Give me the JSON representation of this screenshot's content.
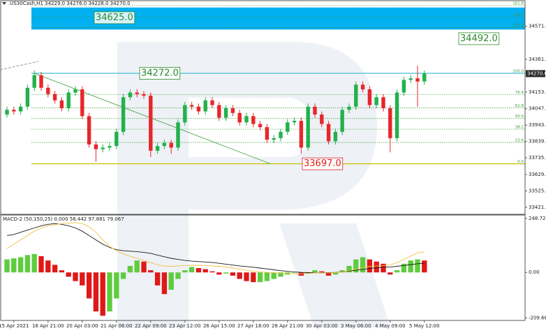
{
  "chart_data": [
    {
      "type": "candlestick",
      "title": ".US30Cash,H1  34229.0 34276.0 34228.0 34270.0",
      "categories": [
        null,
        "15 Apr 2021",
        null,
        null,
        null,
        null,
        "16 Apr 21:00",
        null,
        null,
        null,
        null,
        "20 Apr 03:00",
        null,
        null,
        null,
        null,
        "21 Apr 06:00",
        null,
        null,
        null,
        null,
        "22 Apr 09:00",
        null,
        null,
        null,
        null,
        "23 Apr 12:00",
        null,
        null,
        null,
        null,
        "26 Apr 15:00",
        null,
        null,
        null,
        null,
        "27 Apr 18:00",
        null,
        null,
        null,
        null,
        "28 Apr 21:00",
        null,
        null,
        null,
        null,
        "30 Apr 03:00",
        null,
        null,
        null,
        null,
        "3 May 06:00",
        null,
        null,
        null,
        null,
        "4 May 09:00",
        null,
        null,
        null,
        null,
        "5 May 12:00"
      ],
      "open": [
        34010,
        34040,
        34030,
        34060,
        34180,
        34260,
        34180,
        34140,
        34100,
        34050,
        34150,
        34170,
        34000,
        33820,
        33790,
        33800,
        33810,
        33900,
        34120,
        34150,
        34140,
        34130,
        33780,
        33810,
        33830,
        33800,
        33960,
        34070,
        34060,
        34030,
        34100,
        34070,
        33990,
        34050,
        34020,
        33960,
        34000,
        33950,
        33930,
        33850,
        33860,
        33900,
        33960,
        33970,
        33800,
        34060,
        34010,
        33950,
        33840,
        33900,
        34040,
        34060,
        34200,
        34170,
        34070,
        34120,
        34050,
        33860,
        34150,
        34230,
        34240,
        34220
      ],
      "high": [
        34060,
        34060,
        34080,
        34200,
        34290,
        34280,
        34200,
        34160,
        34120,
        34170,
        34190,
        34190,
        34020,
        33840,
        33820,
        33830,
        33920,
        34140,
        34170,
        34170,
        34160,
        34150,
        33830,
        33850,
        33850,
        33980,
        34090,
        34090,
        34080,
        34120,
        34120,
        34090,
        34070,
        34070,
        34040,
        34020,
        34020,
        33970,
        33950,
        33880,
        33920,
        33980,
        33990,
        33990,
        34080,
        34080,
        34030,
        33970,
        33920,
        34060,
        34080,
        34220,
        34220,
        34190,
        34140,
        34140,
        34070,
        34170,
        34250,
        34260,
        34320,
        34290
      ],
      "low": [
        33990,
        34010,
        34010,
        34040,
        34160,
        34160,
        34120,
        34080,
        34030,
        34030,
        34130,
        33980,
        33800,
        33710,
        33770,
        33780,
        33790,
        33880,
        34100,
        34120,
        34110,
        33740,
        33760,
        33790,
        33760,
        33780,
        33940,
        34040,
        34010,
        34010,
        34050,
        33970,
        33970,
        34000,
        33940,
        33940,
        33930,
        33910,
        33830,
        33830,
        33840,
        33880,
        33940,
        33760,
        33780,
        33990,
        33930,
        33820,
        33820,
        33880,
        34020,
        34040,
        34150,
        34050,
        34050,
        34030,
        33770,
        33840,
        34130,
        34210,
        34060,
        34200
      ],
      "close": [
        34040,
        34030,
        34060,
        34180,
        34260,
        34180,
        34140,
        34100,
        34050,
        34150,
        34170,
        34000,
        33820,
        33790,
        33800,
        33810,
        33900,
        34120,
        34150,
        34140,
        34130,
        33780,
        33810,
        33830,
        33800,
        33960,
        34070,
        34060,
        34030,
        34100,
        34070,
        33990,
        34050,
        34020,
        33960,
        34000,
        33950,
        33930,
        33850,
        33860,
        33900,
        33960,
        33970,
        33800,
        34060,
        34010,
        33950,
        33840,
        33900,
        34040,
        34060,
        34200,
        34170,
        34070,
        34120,
        34050,
        33860,
        34150,
        34230,
        34240,
        34220,
        34270
      ],
      "up_color": "#22b14c",
      "down_color": "#e8262a",
      "ylim": [
        33385,
        34720
      ],
      "yticks": [
        {
          "value": 34571,
          "label": "34571.0"
        },
        {
          "value": 34361,
          "label": "34361.0"
        },
        {
          "value": 34153,
          "label": "34153.0"
        },
        {
          "value": 34047,
          "label": "34047.0"
        },
        {
          "value": 33943,
          "label": "33943.0"
        },
        {
          "value": 33839,
          "label": "33839.0"
        },
        {
          "value": 33735,
          "label": "33735.0"
        },
        {
          "value": 33629,
          "label": "33629.0"
        },
        {
          "value": 33525,
          "label": "33525.0"
        },
        {
          "value": 33421,
          "label": "33421.0"
        }
      ],
      "current_price": {
        "value": 34270,
        "label": "34270.0"
      },
      "zone": {
        "range": [
          34550,
          34690
        ],
        "color": "#00b0f0"
      },
      "levels": [
        {
          "value": 34272,
          "label": "34272.0",
          "color": "#45bfd6",
          "label_color": "#2e8b2e"
        },
        {
          "value": 33697,
          "label": "33697.0",
          "color": "#c8c000",
          "label_color": "#e02020"
        }
      ],
      "annotations": [
        {
          "value": 34625,
          "label": "34625.0"
        },
        {
          "value": 34492,
          "label": "34492.0"
        }
      ],
      "annotation_color": "#2e8b2e",
      "fib_color": "#3a9a3a",
      "fib_levels": [
        {
          "value": 34702,
          "label": "161.8"
        },
        {
          "value": 34630,
          "label": "138.2"
        },
        {
          "value": 34563,
          "label": "123.6"
        },
        {
          "value": 34272,
          "label": "100.0"
        },
        {
          "value": 34136,
          "label": "76.4"
        },
        {
          "value": 34052,
          "label": "61.8"
        },
        {
          "value": 33985,
          "label": "50.0"
        },
        {
          "value": 33917,
          "label": "38.2"
        },
        {
          "value": 33833,
          "label": "23.6"
        },
        {
          "value": 33697,
          "label": "0.0"
        }
      ],
      "trendline_color": "#3a9a3a"
    },
    {
      "type": "macd",
      "title": "MACD-2 (50,150,25) 0.000 56.442 97.881 79.067",
      "ylim": [
        -215,
        255
      ],
      "yticks": [
        248.728,
        {
          "value": 0,
          "label": "0.00"
        },
        -209.661
      ],
      "values": [
        60,
        65,
        70,
        80,
        85,
        75,
        55,
        35,
        10,
        -20,
        -40,
        -60,
        -120,
        -180,
        -200,
        -180,
        -120,
        -30,
        30,
        55,
        50,
        10,
        -60,
        -100,
        -80,
        -30,
        10,
        25,
        20,
        15,
        5,
        -10,
        -5,
        -15,
        -30,
        -40,
        -45,
        -45,
        -40,
        -30,
        -20,
        -10,
        0,
        -15,
        -5,
        10,
        5,
        -15,
        -10,
        10,
        30,
        60,
        70,
        60,
        50,
        40,
        -10,
        10,
        40,
        55,
        60,
        55
      ],
      "up_color": "#5fcc3f",
      "down_color": "#e01818",
      "series": [
        {
          "color": "#1a1a1a",
          "values": [
            170,
            175,
            185,
            195,
            205,
            215,
            222,
            225,
            222,
            215,
            205,
            190,
            170,
            150,
            130,
            115,
            105,
            100,
            98,
            96,
            92,
            88,
            80,
            72,
            65,
            60,
            55,
            52,
            50,
            48,
            46,
            42,
            38,
            34,
            30,
            27,
            24,
            20,
            16,
            12,
            8,
            5,
            2,
            0,
            -1,
            -2,
            -2,
            -1,
            0,
            3,
            6,
            10,
            14,
            18,
            21,
            24,
            25,
            28,
            32,
            36,
            40,
            42
          ]
        },
        {
          "color": "#f0c040",
          "values": [
            110,
            130,
            150,
            170,
            190,
            205,
            215,
            220,
            225,
            228,
            230,
            225,
            210,
            185,
            150,
            120,
            100,
            85,
            75,
            65,
            55,
            45,
            35,
            30,
            28,
            30,
            32,
            33,
            33,
            32,
            30,
            28,
            25,
            20,
            15,
            10,
            5,
            2,
            0,
            -2,
            -4,
            -5,
            -6,
            -6,
            -5,
            -3,
            -2,
            -2,
            -1,
            2,
            8,
            15,
            22,
            28,
            30,
            32,
            34,
            45,
            60,
            75,
            90,
            95
          ]
        }
      ]
    }
  ]
}
